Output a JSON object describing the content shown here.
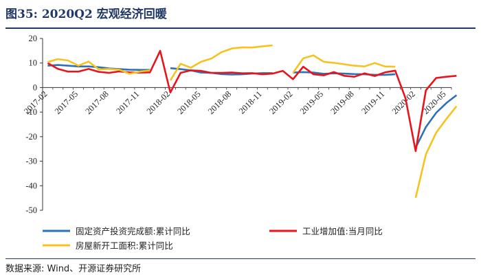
{
  "header": {
    "title": "图35:  2020Q2 宏观经济回暖"
  },
  "footer": {
    "source": "数据来源:  Wind、开源证券研究所"
  },
  "chart_data": {
    "type": "line",
    "title": "",
    "xlabel": "",
    "ylabel": "",
    "ylim": [
      -50,
      20
    ],
    "yticks": [
      20,
      10,
      0,
      -10,
      -20,
      -30,
      -40,
      -50
    ],
    "x_tick_labels": [
      "2017-02",
      "2017-05",
      "2017-08",
      "2017-11",
      "2018-02",
      "2018-05",
      "2018-08",
      "2018-11",
      "2019-02",
      "2019-05",
      "2019-08",
      "2019-11",
      "2020-02",
      "2020-05"
    ],
    "grid": false,
    "legend_position": "bottom",
    "series": [
      {
        "name": "固定资产投资完成额:累计同比",
        "color": "#2e6fb5",
        "points": [
          [
            "2017-02",
            8.9
          ],
          [
            "2017-03",
            9.2
          ],
          [
            "2017-04",
            8.9
          ],
          [
            "2017-05",
            8.6
          ],
          [
            "2017-06",
            8.6
          ],
          [
            "2017-07",
            8.3
          ],
          [
            "2017-08",
            7.8
          ],
          [
            "2017-09",
            7.5
          ],
          [
            "2017-10",
            7.3
          ],
          [
            "2017-11",
            7.2
          ],
          [
            "2017-12",
            7.2
          ],
          [
            "2018-02",
            7.9
          ],
          [
            "2018-03",
            7.5
          ],
          [
            "2018-04",
            7.0
          ],
          [
            "2018-05",
            6.1
          ],
          [
            "2018-06",
            6.0
          ],
          [
            "2018-07",
            5.5
          ],
          [
            "2018-08",
            5.3
          ],
          [
            "2018-09",
            5.4
          ],
          [
            "2018-10",
            5.7
          ],
          [
            "2018-11",
            5.9
          ],
          [
            "2018-12",
            5.9
          ],
          [
            "2019-02",
            6.1
          ],
          [
            "2019-03",
            6.3
          ],
          [
            "2019-04",
            6.1
          ],
          [
            "2019-05",
            5.6
          ],
          [
            "2019-06",
            5.8
          ],
          [
            "2019-07",
            5.7
          ],
          [
            "2019-08",
            5.5
          ],
          [
            "2019-09",
            5.4
          ],
          [
            "2019-10",
            5.2
          ],
          [
            "2019-11",
            5.2
          ],
          [
            "2019-12",
            5.4
          ],
          [
            "2020-02",
            -24.5
          ],
          [
            "2020-03",
            -16.1
          ],
          [
            "2020-04",
            -10.3
          ],
          [
            "2020-05",
            -6.3
          ],
          [
            "2020-06",
            -3.1
          ]
        ]
      },
      {
        "name": "工业增加值:当月同比",
        "color": "#e8141c",
        "points": [
          [
            "2017-02",
            10.0
          ],
          [
            "2017-03",
            7.6
          ],
          [
            "2017-04",
            6.5
          ],
          [
            "2017-05",
            6.5
          ],
          [
            "2017-06",
            7.6
          ],
          [
            "2017-07",
            6.4
          ],
          [
            "2017-08",
            6.0
          ],
          [
            "2017-09",
            6.6
          ],
          [
            "2017-10",
            6.2
          ],
          [
            "2017-11",
            6.1
          ],
          [
            "2017-12",
            6.2
          ],
          [
            "2018-01",
            15.0
          ],
          [
            "2018-02",
            -2.0
          ],
          [
            "2018-03",
            6.0
          ],
          [
            "2018-04",
            7.0
          ],
          [
            "2018-05",
            6.8
          ],
          [
            "2018-06",
            6.0
          ],
          [
            "2018-07",
            6.0
          ],
          [
            "2018-08",
            6.1
          ],
          [
            "2018-09",
            5.8
          ],
          [
            "2018-10",
            5.9
          ],
          [
            "2018-11",
            5.4
          ],
          [
            "2018-12",
            5.7
          ],
          [
            "2019-01",
            6.8
          ],
          [
            "2019-02",
            3.4
          ],
          [
            "2019-03",
            8.5
          ],
          [
            "2019-04",
            5.4
          ],
          [
            "2019-05",
            5.0
          ],
          [
            "2019-06",
            6.3
          ],
          [
            "2019-07",
            4.8
          ],
          [
            "2019-08",
            4.4
          ],
          [
            "2019-09",
            5.8
          ],
          [
            "2019-10",
            4.7
          ],
          [
            "2019-11",
            6.2
          ],
          [
            "2019-12",
            6.9
          ],
          [
            "2020-01",
            -4.3
          ],
          [
            "2020-02",
            -25.9
          ],
          [
            "2020-03",
            -1.1
          ],
          [
            "2020-04",
            3.9
          ],
          [
            "2020-05",
            4.4
          ],
          [
            "2020-06",
            4.8
          ]
        ]
      },
      {
        "name": "房屋新开工面积:累计同比",
        "color": "#f7c21e",
        "points": [
          [
            "2017-02",
            10.4
          ],
          [
            "2017-03",
            11.6
          ],
          [
            "2017-04",
            11.0
          ],
          [
            "2017-05",
            8.9
          ],
          [
            "2017-06",
            10.6
          ],
          [
            "2017-07",
            7.4
          ],
          [
            "2017-08",
            7.6
          ],
          [
            "2017-09",
            7.3
          ],
          [
            "2017-10",
            5.6
          ],
          [
            "2017-11",
            6.5
          ],
          [
            "2017-12",
            7.0
          ],
          [
            "2018-02",
            2.9
          ],
          [
            "2018-03",
            9.7
          ],
          [
            "2018-04",
            8.1
          ],
          [
            "2018-05",
            10.5
          ],
          [
            "2018-06",
            11.8
          ],
          [
            "2018-07",
            14.4
          ],
          [
            "2018-08",
            15.9
          ],
          [
            "2018-09",
            16.4
          ],
          [
            "2018-10",
            16.3
          ],
          [
            "2018-11",
            16.8
          ],
          [
            "2018-12",
            17.2
          ],
          [
            "2019-02",
            6.0
          ],
          [
            "2019-03",
            11.9
          ],
          [
            "2019-04",
            13.1
          ],
          [
            "2019-05",
            10.5
          ],
          [
            "2019-06",
            10.1
          ],
          [
            "2019-07",
            9.5
          ],
          [
            "2019-08",
            8.9
          ],
          [
            "2019-09",
            8.6
          ],
          [
            "2019-10",
            10.0
          ],
          [
            "2019-11",
            8.6
          ],
          [
            "2019-12",
            8.5
          ],
          [
            "2020-02",
            -44.9
          ],
          [
            "2020-03",
            -27.2
          ],
          [
            "2020-04",
            -18.4
          ],
          [
            "2020-05",
            -12.8
          ],
          [
            "2020-06",
            -7.6
          ]
        ]
      }
    ]
  }
}
